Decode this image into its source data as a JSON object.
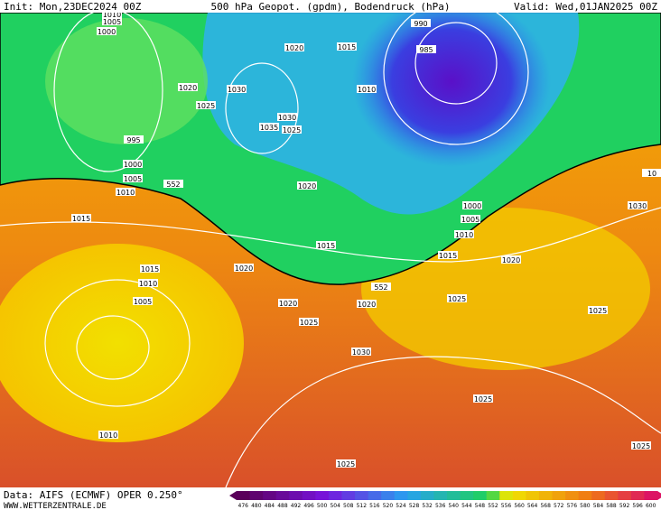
{
  "header": {
    "init": "Init: Mon,23DEC2024 00Z",
    "title": "500 hPa Geopot. (gpdm), Bodendruck (hPa)",
    "valid": "Valid: Wed,01JAN2025 00Z"
  },
  "map": {
    "isobar_labels": [
      "1010",
      "1005",
      "1000",
      "1020",
      "1025",
      "1030",
      "1020",
      "1015",
      "1010",
      "990",
      "985",
      "1030",
      "1025",
      "1035",
      "995",
      "1000",
      "1005",
      "1010",
      "552",
      "1020",
      "1015",
      "1000",
      "1005",
      "1010",
      "1015",
      "1015",
      "1030",
      "10",
      "1020",
      "1015",
      "1020",
      "1010",
      "1005",
      "552",
      "1020",
      "1020",
      "1025",
      "1025",
      "1025",
      "1030",
      "1025",
      "1010",
      "1025",
      "1025"
    ]
  },
  "footer": {
    "source": "Data: AIFS (ECMWF) OPER 0.250°",
    "site": "WWW.WETTERZENTRALE.DE"
  },
  "legend": {
    "labels": [
      476,
      480,
      484,
      488,
      492,
      496,
      500,
      504,
      508,
      512,
      516,
      520,
      524,
      528,
      532,
      536,
      540,
      544,
      548,
      552,
      556,
      560,
      564,
      568,
      572,
      576,
      580,
      584,
      588,
      592,
      596,
      600
    ]
  }
}
